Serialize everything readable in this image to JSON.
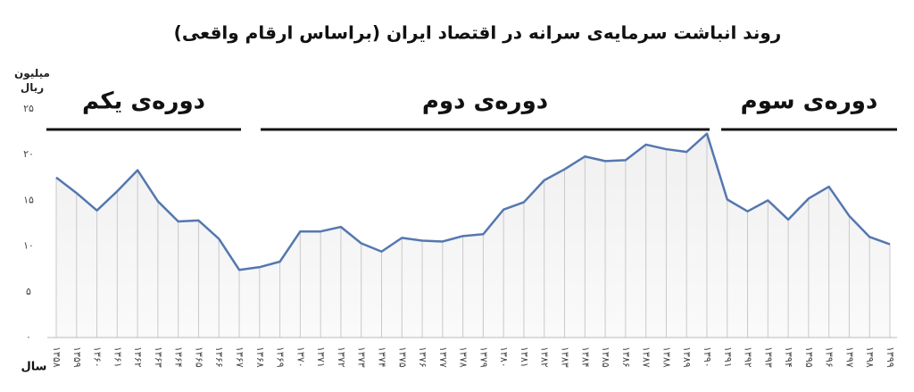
{
  "chart_data": {
    "type": "line",
    "title": "روند انباشت سرمایه‌ی سرانه در اقتصاد ایران (براساس ارقام واقعی)",
    "y_label": "میلیون ریال",
    "x_label": "سال",
    "annotations": [
      "دوره‌ی یکم",
      "دوره‌ی دوم",
      "دوره‌ی سوم"
    ],
    "categories": [
      "۱۳۵۸",
      "۱۳۵۹",
      "۱۳۶۰",
      "۱۳۶۱",
      "۱۳۶۲",
      "۱۳۶۳",
      "۱۳۶۴",
      "۱۳۶۵",
      "۱۳۶۶",
      "۱۳۶۷",
      "۱۳۶۸",
      "۱۳۶۹",
      "۱۳۷۰",
      "۱۳۷۱",
      "۱۳۷۲",
      "۱۳۷۳",
      "۱۳۷۴",
      "۱۳۷۵",
      "۱۳۷۶",
      "۱۳۷۷",
      "۱۳۷۸",
      "۱۳۷۹",
      "۱۳۸۰",
      "۱۳۸۱",
      "۱۳۸۲",
      "۱۳۸۳",
      "۱۳۸۴",
      "۱۳۸۵",
      "۱۳۸۶",
      "۱۳۸۷",
      "۱۳۸۸",
      "۱۳۸۹",
      "۱۳۹۰",
      "۱۳۹۱",
      "۱۳۹۲",
      "۱۳۹۳",
      "۱۳۹۴",
      "۱۳۹۵",
      "۱۳۹۶",
      "۱۳۹۷",
      "۱۳۹۸",
      "۱۳۹۹"
    ],
    "values": [
      17.5,
      15.8,
      13.9,
      16.0,
      18.3,
      14.9,
      12.7,
      12.8,
      10.8,
      7.4,
      7.7,
      8.3,
      11.6,
      11.6,
      12.1,
      10.3,
      9.4,
      10.9,
      10.6,
      10.5,
      11.1,
      11.3,
      14.0,
      14.8,
      17.2,
      18.4,
      19.8,
      19.3,
      19.4,
      21.1,
      20.6,
      20.3,
      22.3,
      15.1,
      13.8,
      15.0,
      12.9,
      15.2,
      16.5,
      13.3,
      11.0,
      10.2
    ],
    "color": "#5577b0",
    "ylim": [
      0,
      25
    ],
    "yticks": [
      {
        "value": 0,
        "label": "۰"
      },
      {
        "value": 5,
        "label": "۵"
      },
      {
        "value": 10,
        "label": "۱۰"
      },
      {
        "value": 15,
        "label": "۱۵"
      },
      {
        "value": 20,
        "label": "۲۰"
      },
      {
        "value": 25,
        "label": "۲۵"
      }
    ]
  }
}
